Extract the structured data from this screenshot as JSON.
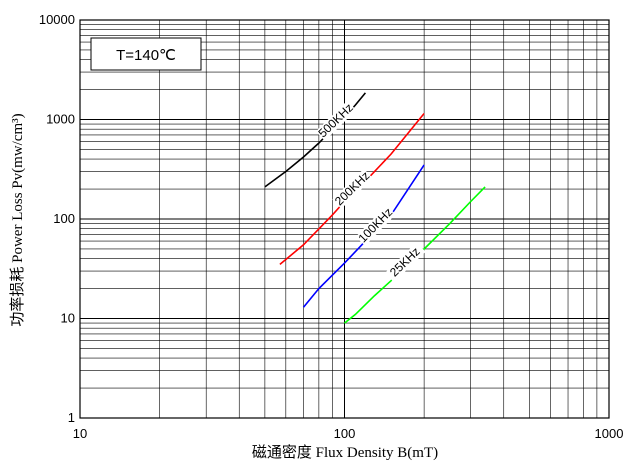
{
  "chart_data": {
    "type": "line",
    "title": "",
    "xlabel": "磁通密度 Flux Density B(mT)",
    "ylabel": "功率损耗 Power Loss Pv(mw/cm³)",
    "x_scale": "log",
    "y_scale": "log",
    "xlim": [
      10,
      1000
    ],
    "ylim": [
      1,
      10000
    ],
    "x_ticks": [
      "10",
      "100",
      "1000"
    ],
    "y_ticks": [
      "1",
      "10",
      "100",
      "1000",
      "10000"
    ],
    "grid": true,
    "annotation": "T=140℃",
    "series": [
      {
        "name": "500KHz",
        "color": "#000000",
        "points": [
          [
            50,
            210
          ],
          [
            60,
            300
          ],
          [
            70,
            420
          ],
          [
            80,
            580
          ],
          [
            90,
            800
          ],
          [
            100,
            1050
          ],
          [
            110,
            1400
          ],
          [
            120,
            1850
          ]
        ]
      },
      {
        "name": "200KHz",
        "color": "#ff0000",
        "points": [
          [
            57,
            35
          ],
          [
            70,
            55
          ],
          [
            90,
            110
          ],
          [
            100,
            150
          ],
          [
            120,
            240
          ],
          [
            150,
            450
          ],
          [
            200,
            1150
          ]
        ]
      },
      {
        "name": "100KHz",
        "color": "#0000ff",
        "points": [
          [
            70,
            13
          ],
          [
            80,
            20
          ],
          [
            100,
            36
          ],
          [
            120,
            60
          ],
          [
            150,
            110
          ],
          [
            200,
            350
          ]
        ]
      },
      {
        "name": "25KHz",
        "color": "#00ff00",
        "points": [
          [
            100,
            9
          ],
          [
            110,
            11
          ],
          [
            130,
            17
          ],
          [
            150,
            24
          ],
          [
            200,
            50
          ],
          [
            250,
            90
          ],
          [
            300,
            150
          ],
          [
            340,
            210
          ]
        ]
      }
    ]
  }
}
